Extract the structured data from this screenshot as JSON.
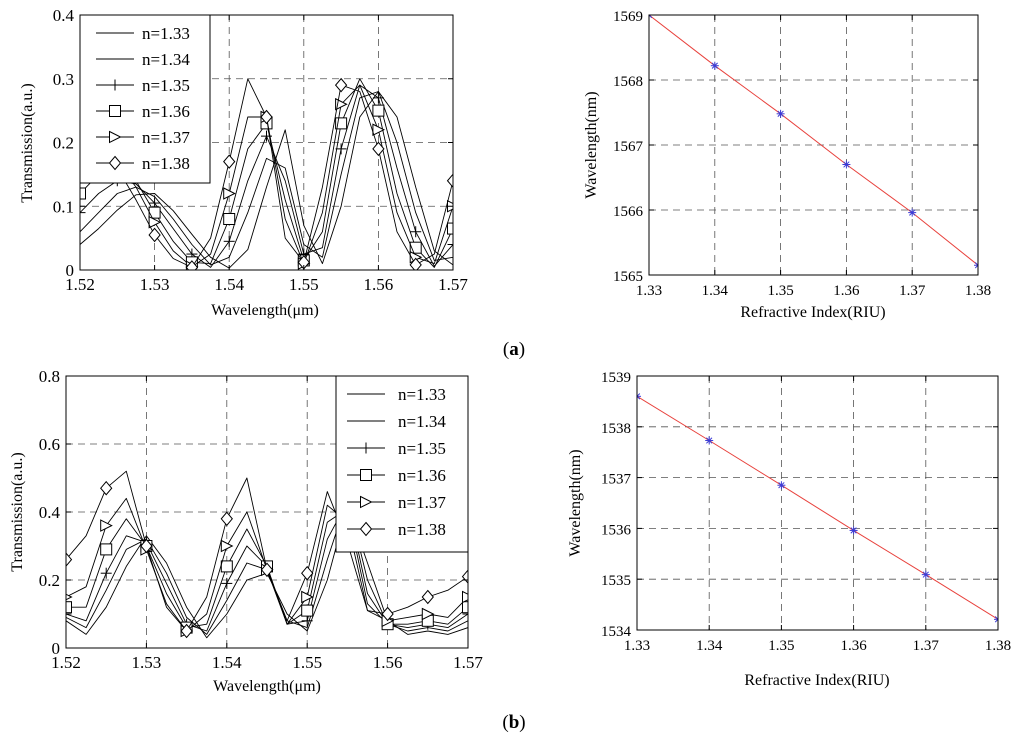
{
  "panel_labels": [
    "(a)",
    "(b)"
  ],
  "chart_data": [
    {
      "type": "line",
      "panel": "a",
      "xlabel": "Wavelength(μm)",
      "ylabel": "Transmission(a.u.)",
      "xlim": [
        1.52,
        1.57
      ],
      "ylim": [
        0,
        0.4
      ],
      "xticks": [
        "1.52",
        "1.53",
        "1.54",
        "1.55",
        "1.56",
        "1.57"
      ],
      "yticks": [
        "0",
        "0.1",
        "0.2",
        "0.3",
        "0.4"
      ],
      "grid": true,
      "legend_position": "upper-left",
      "series": [
        {
          "name": "n=1.33",
          "marker": "none",
          "x": [
            1.52,
            1.5225,
            1.525,
            1.5275,
            1.53,
            1.5325,
            1.535,
            1.5375,
            1.54,
            1.5425,
            1.545,
            1.5475,
            1.55,
            1.5525,
            1.555,
            1.5575,
            1.56,
            1.5625,
            1.565,
            1.5675,
            1.57
          ],
          "y": [
            0.04,
            0.065,
            0.094,
            0.118,
            0.12,
            0.093,
            0.056,
            0.02,
            0.003,
            0.032,
            0.13,
            0.22,
            0.07,
            0.01,
            0.1,
            0.24,
            0.28,
            0.24,
            0.13,
            0.03,
            0.008
          ]
        },
        {
          "name": "n=1.34",
          "marker": "none",
          "x": [
            1.52,
            1.5225,
            1.525,
            1.5275,
            1.53,
            1.5325,
            1.535,
            1.5375,
            1.54,
            1.5425,
            1.545,
            1.5475,
            1.55,
            1.5525,
            1.555,
            1.5575,
            1.56,
            1.5625,
            1.565,
            1.5675,
            1.57
          ],
          "y": [
            0.06,
            0.09,
            0.12,
            0.13,
            0.115,
            0.08,
            0.04,
            0.008,
            0.02,
            0.09,
            0.175,
            0.16,
            0.04,
            0.02,
            0.15,
            0.27,
            0.28,
            0.2,
            0.09,
            0.015,
            0.02
          ]
        },
        {
          "name": "n=1.35",
          "marker": "plus",
          "x": [
            1.52,
            1.5225,
            1.525,
            1.5275,
            1.53,
            1.5325,
            1.535,
            1.5375,
            1.54,
            1.5425,
            1.545,
            1.5475,
            1.55,
            1.5525,
            1.555,
            1.5575,
            1.56,
            1.5625,
            1.565,
            1.5675,
            1.57
          ],
          "y": [
            0.09,
            0.12,
            0.14,
            0.135,
            0.105,
            0.065,
            0.025,
            0.004,
            0.045,
            0.14,
            0.21,
            0.14,
            0.025,
            0.035,
            0.19,
            0.29,
            0.27,
            0.16,
            0.06,
            0.006,
            0.04
          ]
        },
        {
          "name": "n=1.36",
          "marker": "square",
          "x": [
            1.52,
            1.5225,
            1.525,
            1.5275,
            1.53,
            1.5325,
            1.535,
            1.5375,
            1.54,
            1.5425,
            1.545,
            1.5475,
            1.55,
            1.5525,
            1.555,
            1.5575,
            1.56,
            1.5625,
            1.565,
            1.5675,
            1.57
          ],
          "y": [
            0.12,
            0.15,
            0.16,
            0.14,
            0.09,
            0.045,
            0.012,
            0.01,
            0.08,
            0.19,
            0.23,
            0.11,
            0.015,
            0.06,
            0.23,
            0.3,
            0.25,
            0.12,
            0.035,
            0.004,
            0.065
          ]
        },
        {
          "name": "n=1.37",
          "marker": "triangle-right",
          "x": [
            1.52,
            1.5225,
            1.525,
            1.5275,
            1.53,
            1.5325,
            1.535,
            1.5375,
            1.54,
            1.5425,
            1.545,
            1.5475,
            1.55,
            1.5525,
            1.555,
            1.5575,
            1.56,
            1.5625,
            1.565,
            1.5675,
            1.57
          ],
          "y": [
            0.16,
            0.18,
            0.17,
            0.13,
            0.075,
            0.03,
            0.005,
            0.025,
            0.12,
            0.24,
            0.24,
            0.08,
            0.01,
            0.09,
            0.26,
            0.29,
            0.22,
            0.09,
            0.02,
            0.01,
            0.1
          ]
        },
        {
          "name": "n=1.38",
          "marker": "diamond",
          "x": [
            1.52,
            1.5225,
            1.525,
            1.5275,
            1.53,
            1.5325,
            1.535,
            1.5375,
            1.54,
            1.5425,
            1.545,
            1.5475,
            1.55,
            1.5525,
            1.555,
            1.5575,
            1.56,
            1.5625,
            1.565,
            1.5675,
            1.57
          ],
          "y": [
            0.22,
            0.2,
            0.16,
            0.11,
            0.055,
            0.018,
            0.004,
            0.05,
            0.17,
            0.3,
            0.24,
            0.05,
            0.012,
            0.13,
            0.29,
            0.28,
            0.19,
            0.06,
            0.008,
            0.025,
            0.14
          ]
        }
      ]
    },
    {
      "type": "line",
      "panel": "a",
      "xlabel": "Refractive Index(RIU)",
      "ylabel": "Wavelength(nm)",
      "xlim": [
        1.33,
        1.38
      ],
      "ylim": [
        1565,
        1569
      ],
      "xticks": [
        "1.33",
        "1.34",
        "1.35",
        "1.36",
        "1.37",
        "1.38"
      ],
      "yticks": [
        "1565",
        "1566",
        "1567",
        "1568",
        "1569"
      ],
      "grid": true,
      "series": [
        {
          "marker": "star",
          "x": [
            1.33,
            1.34,
            1.35,
            1.36,
            1.37,
            1.38
          ],
          "y": [
            1569.0,
            1568.22,
            1567.48,
            1566.7,
            1565.96,
            1565.15
          ]
        }
      ],
      "colors": {
        "fit": "#e8413c",
        "points": "#3b3bd6"
      }
    },
    {
      "type": "line",
      "panel": "b",
      "xlabel": "Wavelength(μm)",
      "ylabel": "Transmission(a.u.)",
      "xlim": [
        1.52,
        1.57
      ],
      "ylim": [
        0,
        0.8
      ],
      "xticks": [
        "1.52",
        "1.53",
        "1.54",
        "1.55",
        "1.56",
        "1.57"
      ],
      "yticks": [
        "0",
        "0.2",
        "0.4",
        "0.6",
        "0.8"
      ],
      "grid": true,
      "legend_position": "upper-right",
      "series": [
        {
          "name": "n=1.33",
          "marker": "none",
          "x": [
            1.52,
            1.5225,
            1.525,
            1.5275,
            1.53,
            1.5325,
            1.535,
            1.5375,
            1.54,
            1.5425,
            1.545,
            1.5475,
            1.55,
            1.5525,
            1.555,
            1.5575,
            1.56,
            1.5625,
            1.565,
            1.5675,
            1.57
          ],
          "y": [
            0.08,
            0.04,
            0.12,
            0.24,
            0.33,
            0.25,
            0.12,
            0.03,
            0.1,
            0.2,
            0.22,
            0.1,
            0.05,
            0.2,
            0.42,
            0.25,
            0.08,
            0.04,
            0.05,
            0.04,
            0.06
          ]
        },
        {
          "name": "n=1.34",
          "marker": "none",
          "x": [
            1.52,
            1.5225,
            1.525,
            1.5275,
            1.53,
            1.5325,
            1.535,
            1.5375,
            1.54,
            1.5425,
            1.545,
            1.5475,
            1.55,
            1.5525,
            1.555,
            1.5575,
            1.56,
            1.5625,
            1.565,
            1.5675,
            1.57
          ],
          "y": [
            0.09,
            0.06,
            0.17,
            0.29,
            0.32,
            0.22,
            0.09,
            0.04,
            0.14,
            0.25,
            0.23,
            0.08,
            0.06,
            0.26,
            0.44,
            0.2,
            0.07,
            0.05,
            0.06,
            0.05,
            0.08
          ]
        },
        {
          "name": "n=1.35",
          "marker": "plus",
          "x": [
            1.52,
            1.5225,
            1.525,
            1.5275,
            1.53,
            1.5325,
            1.535,
            1.5375,
            1.54,
            1.5425,
            1.545,
            1.5475,
            1.55,
            1.5525,
            1.555,
            1.5575,
            1.56,
            1.5625,
            1.565,
            1.5675,
            1.57
          ],
          "y": [
            0.1,
            0.08,
            0.22,
            0.33,
            0.31,
            0.19,
            0.07,
            0.05,
            0.19,
            0.3,
            0.24,
            0.07,
            0.08,
            0.32,
            0.43,
            0.16,
            0.07,
            0.06,
            0.07,
            0.06,
            0.1
          ]
        },
        {
          "name": "n=1.36",
          "marker": "square",
          "x": [
            1.52,
            1.5225,
            1.525,
            1.5275,
            1.53,
            1.5325,
            1.535,
            1.5375,
            1.54,
            1.5425,
            1.545,
            1.5475,
            1.55,
            1.5525,
            1.555,
            1.5575,
            1.56,
            1.5625,
            1.565,
            1.5675,
            1.57
          ],
          "y": [
            0.12,
            0.12,
            0.29,
            0.38,
            0.3,
            0.16,
            0.06,
            0.07,
            0.24,
            0.35,
            0.24,
            0.07,
            0.11,
            0.37,
            0.41,
            0.13,
            0.07,
            0.07,
            0.08,
            0.07,
            0.12
          ]
        },
        {
          "name": "n=1.37",
          "marker": "triangle-right",
          "x": [
            1.52,
            1.5225,
            1.525,
            1.5275,
            1.53,
            1.5325,
            1.535,
            1.5375,
            1.54,
            1.5425,
            1.545,
            1.5475,
            1.55,
            1.5525,
            1.555,
            1.5575,
            1.56,
            1.5625,
            1.565,
            1.5675,
            1.57
          ],
          "y": [
            0.15,
            0.18,
            0.36,
            0.44,
            0.29,
            0.13,
            0.05,
            0.1,
            0.3,
            0.4,
            0.23,
            0.07,
            0.15,
            0.42,
            0.37,
            0.11,
            0.08,
            0.09,
            0.1,
            0.09,
            0.15
          ]
        },
        {
          "name": "n=1.38",
          "marker": "diamond",
          "x": [
            1.52,
            1.5225,
            1.525,
            1.5275,
            1.53,
            1.5325,
            1.535,
            1.5375,
            1.54,
            1.5425,
            1.545,
            1.5475,
            1.55,
            1.5525,
            1.555,
            1.5575,
            1.56,
            1.5625,
            1.565,
            1.5675,
            1.57
          ],
          "y": [
            0.26,
            0.33,
            0.47,
            0.52,
            0.3,
            0.12,
            0.05,
            0.15,
            0.38,
            0.5,
            0.23,
            0.08,
            0.22,
            0.46,
            0.31,
            0.11,
            0.1,
            0.12,
            0.15,
            0.17,
            0.21
          ]
        }
      ]
    },
    {
      "type": "line",
      "panel": "b",
      "xlabel": "Refractive Index(RIU)",
      "ylabel": "Wavelength(nm)",
      "xlim": [
        1.33,
        1.38
      ],
      "ylim": [
        1534,
        1539
      ],
      "xticks": [
        "1.33",
        "1.34",
        "1.35",
        "1.36",
        "1.37",
        "1.38"
      ],
      "yticks": [
        "1534",
        "1535",
        "1536",
        "1537",
        "1538",
        "1539"
      ],
      "grid": true,
      "series": [
        {
          "marker": "star",
          "x": [
            1.33,
            1.34,
            1.35,
            1.36,
            1.37,
            1.38
          ],
          "y": [
            1538.6,
            1537.73,
            1536.85,
            1535.96,
            1535.09,
            1534.21
          ]
        }
      ],
      "colors": {
        "fit": "#e8413c",
        "points": "#3b3bd6"
      }
    }
  ]
}
